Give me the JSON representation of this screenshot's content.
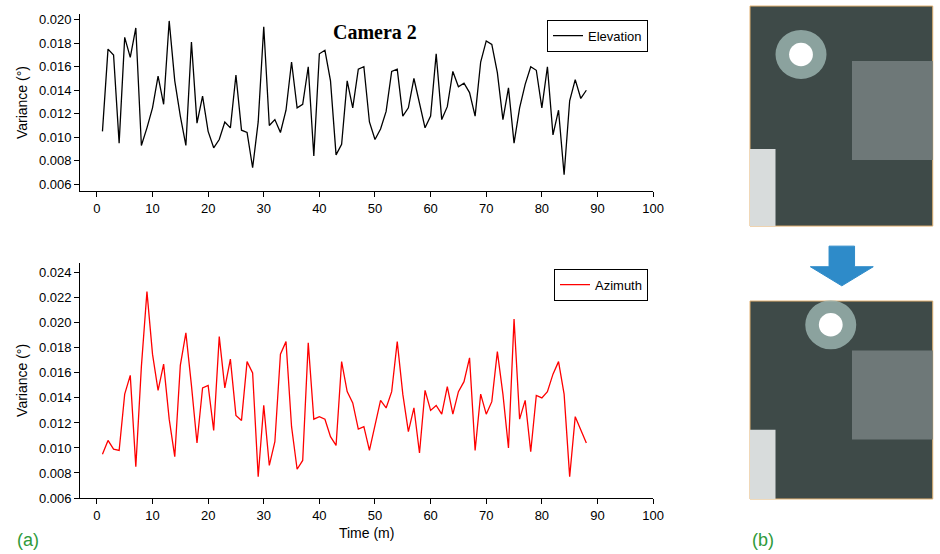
{
  "chart_data": [
    {
      "type": "line",
      "title": "Camera 2",
      "x": [
        1,
        2,
        3,
        4,
        5,
        6,
        7,
        8,
        9,
        10,
        11,
        12,
        13,
        14,
        15,
        16,
        17,
        18,
        19,
        20,
        21,
        22,
        23,
        24,
        25,
        26,
        27,
        28,
        29,
        30,
        31,
        32,
        33,
        34,
        35,
        36,
        37,
        38,
        39,
        40,
        41,
        42,
        43,
        44,
        45,
        46,
        47,
        48,
        49,
        50,
        51,
        52,
        53,
        54,
        55,
        56,
        57,
        58,
        59,
        60,
        61,
        62,
        63,
        64,
        65,
        66,
        67,
        68,
        69,
        70,
        71,
        72,
        73,
        74,
        75,
        76,
        77,
        78,
        79,
        80,
        81,
        82,
        83,
        84,
        85,
        86,
        87,
        88
      ],
      "series": [
        {
          "name": "Elevation",
          "color": "#000000",
          "values": [
            0.0105,
            0.0175,
            0.017,
            0.0095,
            0.0185,
            0.0168,
            0.0193,
            0.0093,
            0.0108,
            0.0125,
            0.0152,
            0.0128,
            0.0199,
            0.0148,
            0.0118,
            0.0093,
            0.0181,
            0.0112,
            0.0135,
            0.0105,
            0.0091,
            0.0098,
            0.0113,
            0.0108,
            0.0153,
            0.0106,
            0.0104,
            0.0074,
            0.0113,
            0.0194,
            0.011,
            0.0115,
            0.0104,
            0.0123,
            0.0164,
            0.0125,
            0.0128,
            0.016,
            0.0084,
            0.0171,
            0.0174,
            0.0148,
            0.0085,
            0.0094,
            0.0148,
            0.0125,
            0.0158,
            0.016,
            0.0113,
            0.0098,
            0.0107,
            0.0122,
            0.0156,
            0.0158,
            0.0118,
            0.0125,
            0.015,
            0.0128,
            0.0108,
            0.0118,
            0.0171,
            0.0115,
            0.0126,
            0.0156,
            0.0143,
            0.0146,
            0.0138,
            0.0118,
            0.0164,
            0.0182,
            0.0179,
            0.0155,
            0.0115,
            0.0142,
            0.0095,
            0.0125,
            0.0145,
            0.016,
            0.0157,
            0.0125,
            0.016,
            0.0102,
            0.0123,
            0.0068,
            0.0131,
            0.0149,
            0.0133,
            0.014
          ]
        }
      ],
      "xlim": [
        -3,
        100
      ],
      "xticks": [
        0,
        10,
        20,
        30,
        40,
        50,
        60,
        70,
        80,
        90,
        100
      ],
      "ylim": [
        0.0054,
        0.0205
      ],
      "yticks": [
        0.006,
        0.008,
        {
          "value": 0.01,
          "label": "0.010"
        },
        0.012,
        0.014,
        0.016,
        0.018,
        {
          "value": 0.02,
          "label": "0.020"
        }
      ],
      "ylabel": "Variance (°)",
      "legend": "top right",
      "grid": false
    },
    {
      "type": "line",
      "x": [
        1,
        2,
        3,
        4,
        5,
        6,
        7,
        8,
        9,
        10,
        11,
        12,
        13,
        14,
        15,
        16,
        17,
        18,
        19,
        20,
        21,
        22,
        23,
        24,
        25,
        26,
        27,
        28,
        29,
        30,
        31,
        32,
        33,
        34,
        35,
        36,
        37,
        38,
        39,
        40,
        41,
        42,
        43,
        44,
        45,
        46,
        47,
        48,
        49,
        50,
        51,
        52,
        53,
        54,
        55,
        56,
        57,
        58,
        59,
        60,
        61,
        62,
        63,
        64,
        65,
        66,
        67,
        68,
        69,
        70,
        71,
        72,
        73,
        74,
        75,
        76,
        77,
        78,
        79,
        80,
        81,
        82,
        83,
        84,
        85,
        86,
        87,
        88
      ],
      "series": [
        {
          "name": "Azimuth",
          "color": "#ff0000",
          "values": [
            0.0095,
            0.0106,
            0.0099,
            0.0098,
            0.0143,
            0.0158,
            0.0085,
            0.0165,
            0.0225,
            0.0175,
            0.0146,
            0.0167,
            0.0123,
            0.0093,
            0.0166,
            0.0192,
            0.015,
            0.0104,
            0.0148,
            0.015,
            0.0114,
            0.0189,
            0.0148,
            0.0171,
            0.0126,
            0.0122,
            0.0169,
            0.016,
            0.0077,
            0.0134,
            0.0086,
            0.0105,
            0.0175,
            0.0185,
            0.0117,
            0.0083,
            0.009,
            0.0184,
            0.0123,
            0.0125,
            0.0123,
            0.0109,
            0.0102,
            0.0169,
            0.0145,
            0.0136,
            0.0115,
            0.0117,
            0.0098,
            0.0118,
            0.0138,
            0.0132,
            0.0145,
            0.0185,
            0.0143,
            0.0113,
            0.0132,
            0.0096,
            0.0146,
            0.013,
            0.0134,
            0.0127,
            0.0149,
            0.0127,
            0.0145,
            0.0153,
            0.0172,
            0.0098,
            0.0143,
            0.0127,
            0.0137,
            0.0177,
            0.0143,
            0.01,
            0.0203,
            0.0123,
            0.0138,
            0.0097,
            0.0142,
            0.014,
            0.0145,
            0.0159,
            0.0169,
            0.0143,
            0.0077,
            0.0125,
            0.0115,
            0.0104
          ]
        }
      ],
      "xlim": [
        -3,
        100
      ],
      "xticks": [
        0,
        10,
        20,
        30,
        40,
        50,
        60,
        70,
        80,
        90,
        100
      ],
      "ylim": [
        0.006,
        0.0248
      ],
      "yticks": [
        0.006,
        0.008,
        {
          "value": 0.01,
          "label": "0.010"
        },
        0.012,
        0.014,
        0.016,
        0.018,
        {
          "value": 0.02,
          "label": "0.020"
        },
        0.022,
        0.024
      ],
      "xlabel": "Time (m)",
      "ylabel": "Variance (°)",
      "legend": "top right",
      "grid": false
    }
  ],
  "panel_labels": [
    "(a)",
    "(b)"
  ]
}
